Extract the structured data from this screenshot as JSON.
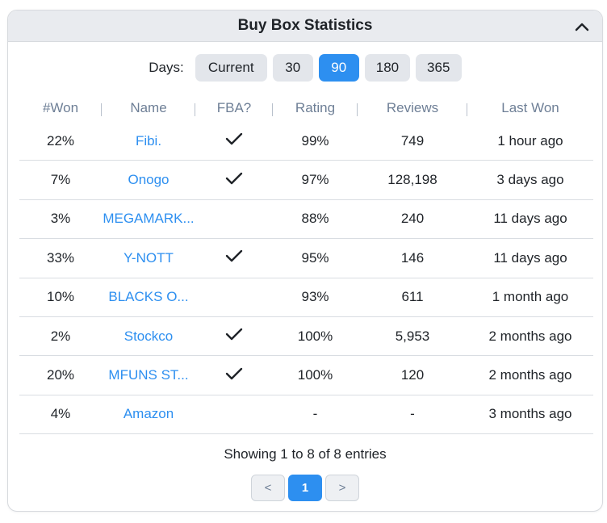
{
  "panel": {
    "title": "Buy Box Statistics",
    "collapse_icon": "chevron-up-icon"
  },
  "days": {
    "label": "Days:",
    "options": [
      "Current",
      "30",
      "90",
      "180",
      "365"
    ],
    "selected": "90"
  },
  "table": {
    "headers": [
      "#Won",
      "Name",
      "FBA?",
      "Rating",
      "Reviews",
      "Last Won"
    ],
    "rows": [
      {
        "won": "22%",
        "name": "Fibi.",
        "fba": true,
        "rating": "99%",
        "reviews": "749",
        "last_won": "1 hour ago"
      },
      {
        "won": "7%",
        "name": "Onogo",
        "fba": true,
        "rating": "97%",
        "reviews": "128,198",
        "last_won": "3 days ago"
      },
      {
        "won": "3%",
        "name": "MEGAMARK...",
        "fba": false,
        "rating": "88%",
        "reviews": "240",
        "last_won": "11 days ago"
      },
      {
        "won": "33%",
        "name": "Y-NOTT",
        "fba": true,
        "rating": "95%",
        "reviews": "146",
        "last_won": "11 days ago"
      },
      {
        "won": "10%",
        "name": "BLACKS O...",
        "fba": false,
        "rating": "93%",
        "reviews": "611",
        "last_won": "1 month ago"
      },
      {
        "won": "2%",
        "name": "Stockco",
        "fba": true,
        "rating": "100%",
        "reviews": "5,953",
        "last_won": "2 months ago"
      },
      {
        "won": "20%",
        "name": "MFUNS ST...",
        "fba": true,
        "rating": "100%",
        "reviews": "120",
        "last_won": "2 months ago"
      },
      {
        "won": "4%",
        "name": "Amazon",
        "fba": false,
        "rating": "-",
        "reviews": "-",
        "last_won": "3 months ago"
      }
    ],
    "fba_icon": "checkmark-icon"
  },
  "footer": {
    "info": "Showing 1 to 8 of 8 entries",
    "prev": "<",
    "current_page": "1",
    "next": ">"
  },
  "colors": {
    "accent": "#2d8ff0",
    "header_bg": "#e9ebef",
    "header_text": "#6e7f96"
  }
}
